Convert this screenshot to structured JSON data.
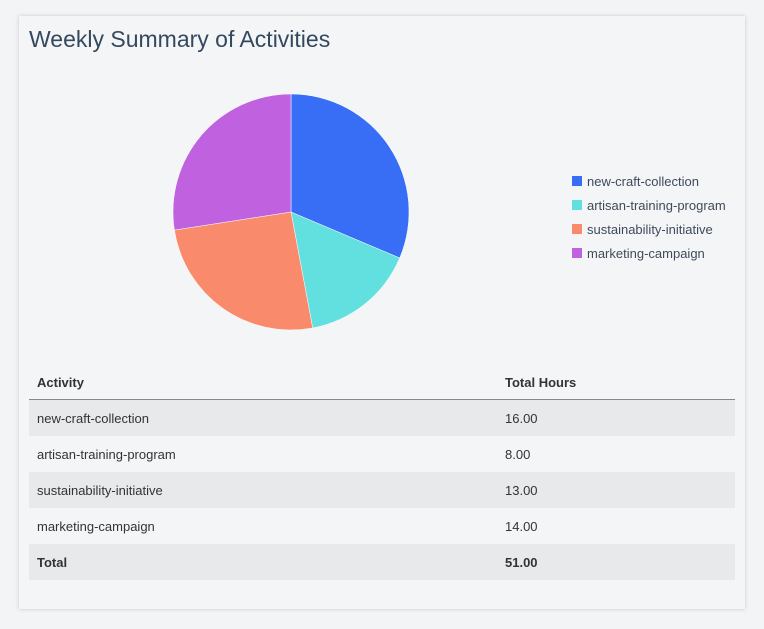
{
  "title": "Weekly Summary of Activities",
  "chart_data": {
    "type": "pie",
    "categories": [
      "new-craft-collection",
      "artisan-training-program",
      "sustainability-initiative",
      "marketing-campaign"
    ],
    "values": [
      16,
      8,
      13,
      14
    ],
    "colors": [
      "#376ef5",
      "#62e0e0",
      "#f98b6c",
      "#c062e0"
    ],
    "legend_position": "right",
    "start": "top",
    "direction": "clockwise"
  },
  "table": {
    "headers": [
      "Activity",
      "Total Hours"
    ],
    "rows": [
      [
        "new-craft-collection",
        "16.00"
      ],
      [
        "artisan-training-program",
        "8.00"
      ],
      [
        "sustainability-initiative",
        "13.00"
      ],
      [
        "marketing-campaign",
        "14.00"
      ]
    ],
    "total": [
      "Total",
      "51.00"
    ]
  }
}
